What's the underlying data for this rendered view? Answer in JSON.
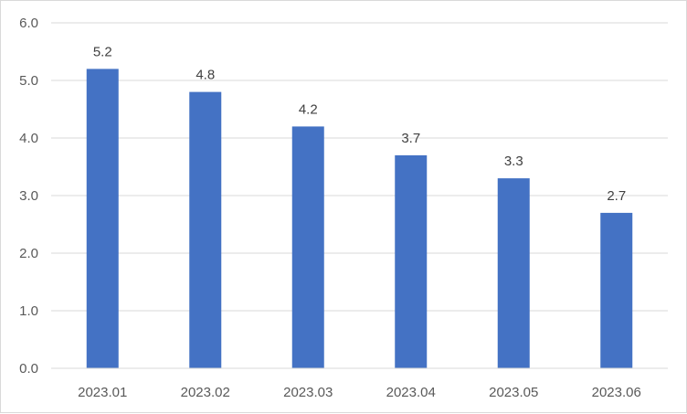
{
  "chart_data": {
    "type": "bar",
    "categories": [
      "2023.01",
      "2023.02",
      "2023.03",
      "2023.04",
      "2023.05",
      "2023.06"
    ],
    "values": [
      5.2,
      4.8,
      4.2,
      3.7,
      3.3,
      2.7
    ],
    "data_labels": [
      "5.2",
      "4.8",
      "4.2",
      "3.7",
      "3.3",
      "2.7"
    ],
    "y_ticks": [
      "0.0",
      "1.0",
      "2.0",
      "3.0",
      "4.0",
      "5.0",
      "6.0"
    ],
    "ylim": [
      0,
      6
    ],
    "grid": true,
    "bar_color": "#4472C4",
    "grid_color": "#d9d9d9",
    "title": "",
    "xlabel": "",
    "ylabel": ""
  }
}
